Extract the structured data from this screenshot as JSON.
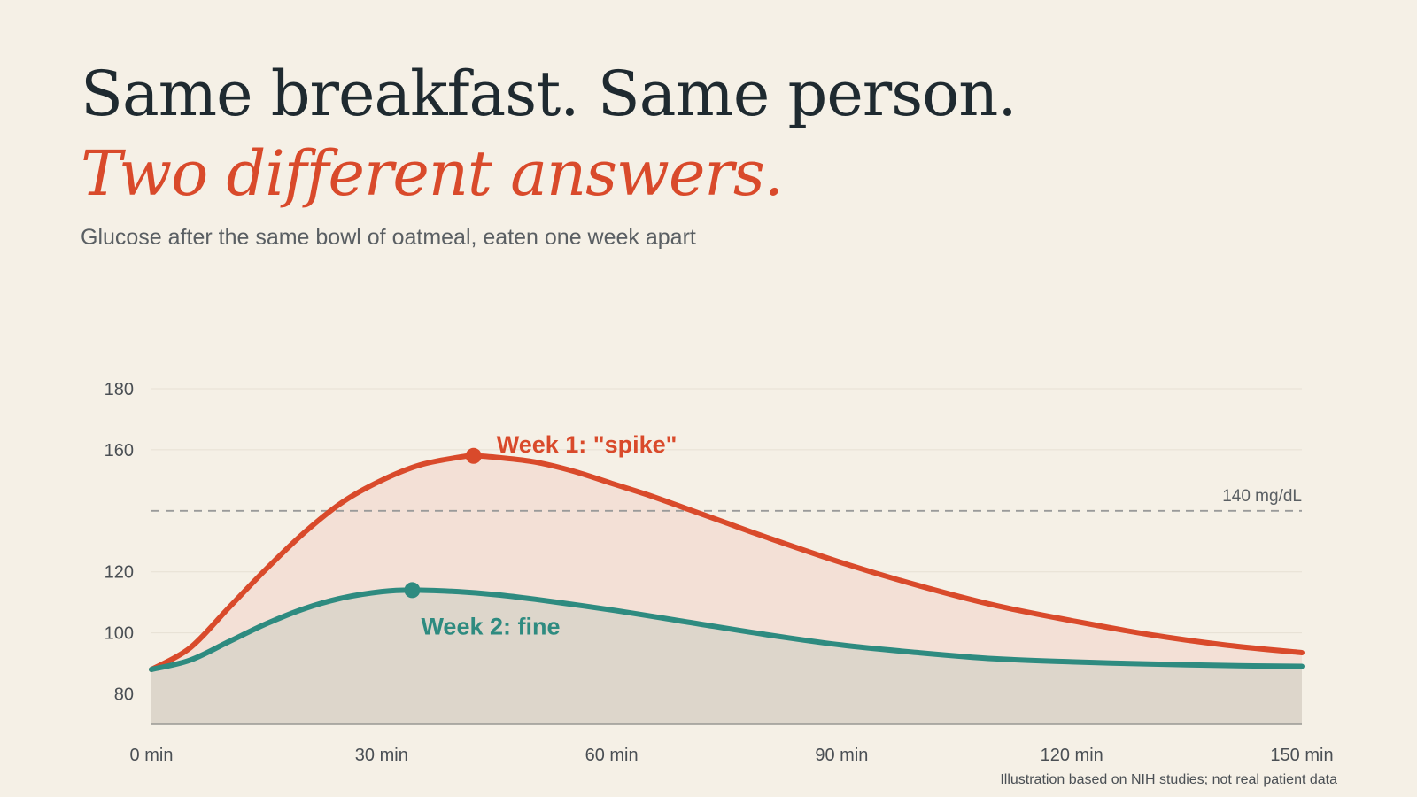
{
  "header": {
    "headline": "Same breakfast. Same person.",
    "headline_accent": "Two different answers.",
    "subtitle": "Glucose after the same bowl of oatmeal, eaten one week apart"
  },
  "footnote": "Illustration based on NIH studies; not real patient data",
  "colors": {
    "background": "#f5f0e6",
    "week1": "#d94a2b",
    "week1_fill": "#f3e0d6",
    "week2": "#2e8b80",
    "week2_fill": "#ddd6cb",
    "grid": "#e6e0d4",
    "reference": "#9a9a9a"
  },
  "chart_data": {
    "type": "line",
    "xlim": [
      0,
      150
    ],
    "ylim": [
      70,
      180
    ],
    "x_ticks": [
      {
        "value": 0,
        "label": "0 min"
      },
      {
        "value": 30,
        "label": "30 min"
      },
      {
        "value": 60,
        "label": "60 min"
      },
      {
        "value": 90,
        "label": "90 min"
      },
      {
        "value": 120,
        "label": "120 min"
      },
      {
        "value": 150,
        "label": "150 min"
      }
    ],
    "y_ticks": [
      {
        "value": 80,
        "label": "80"
      },
      {
        "value": 100,
        "label": "100"
      },
      {
        "value": 120,
        "label": "120"
      },
      {
        "value": 160,
        "label": "160"
      },
      {
        "value": 180,
        "label": "180"
      }
    ],
    "reference_line": {
      "value": 140,
      "label": "140 mg/dL",
      "style": "dashed"
    },
    "series": [
      {
        "name": "Week 1: \"spike\"",
        "key": "week1",
        "x": [
          0,
          5,
          10,
          15,
          20,
          25,
          30,
          35,
          40,
          42,
          45,
          50,
          55,
          60,
          65,
          70,
          75,
          80,
          90,
          100,
          110,
          120,
          130,
          140,
          150
        ],
        "y": [
          88,
          95,
          108,
          121,
          133,
          143,
          150,
          155,
          157.5,
          158,
          157.5,
          156,
          153,
          149,
          145,
          140.5,
          136,
          131.5,
          123,
          115.5,
          109,
          104,
          99.5,
          96,
          93.5
        ],
        "peak": {
          "x": 42,
          "y": 158
        }
      },
      {
        "name": "Week 2: fine",
        "key": "week2",
        "x": [
          0,
          5,
          10,
          15,
          20,
          25,
          30,
          34,
          40,
          45,
          50,
          60,
          70,
          80,
          90,
          100,
          110,
          120,
          130,
          140,
          150
        ],
        "y": [
          88,
          91,
          97,
          103,
          108,
          111.5,
          113.5,
          114,
          113.5,
          112.5,
          111,
          107.5,
          103.5,
          99.5,
          96,
          93.5,
          91.5,
          90.5,
          89.8,
          89.3,
          89
        ],
        "peak": {
          "x": 34,
          "y": 114
        }
      }
    ]
  }
}
